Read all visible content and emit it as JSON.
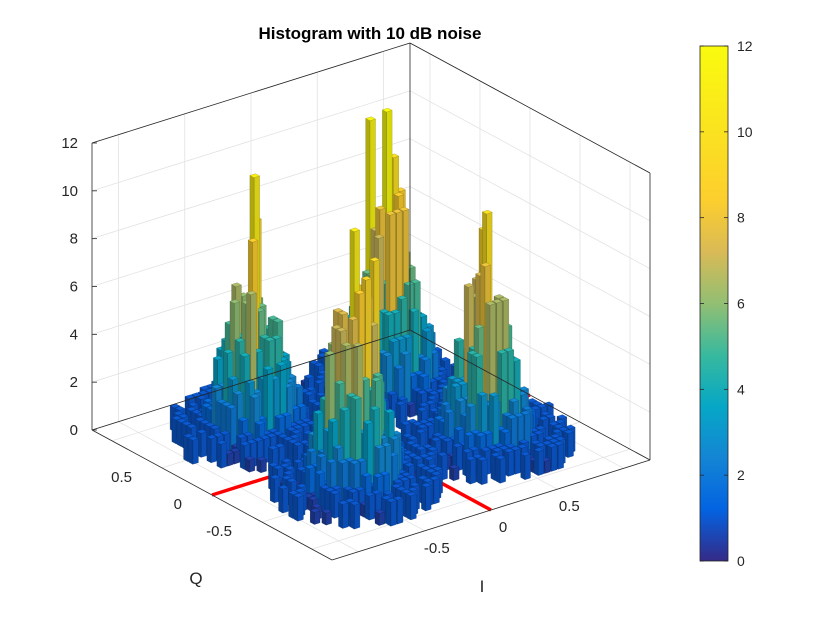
{
  "chart_data": {
    "type": "3d-bar-histogram",
    "title": "Histogram with 10 dB noise",
    "xlabel": "I",
    "ylabel": "Q",
    "zlabel": "",
    "xlim": [
      -1.2,
      1.2
    ],
    "ylim": [
      -1.2,
      1.2
    ],
    "zlim": [
      0,
      12
    ],
    "x_ticks": [
      "-0.5",
      "0",
      "0.5"
    ],
    "y_ticks": [
      "-0.5",
      "0",
      "0.5"
    ],
    "z_ticks": [
      "0",
      "2",
      "4",
      "6",
      "8",
      "10",
      "12"
    ],
    "grid": true,
    "colormap": "parula",
    "colorbar": {
      "range": [
        0,
        12
      ],
      "ticks": [
        "0",
        "2",
        "4",
        "6",
        "8",
        "10",
        "12"
      ]
    },
    "reference_lines": {
      "color": "#ff0000",
      "lines": [
        "I = 0",
        "Q = 0"
      ]
    },
    "clusters": [
      {
        "I": -0.5,
        "Q": 0.5,
        "peak": 11
      },
      {
        "I": 0.5,
        "Q": 0.5,
        "peak": 12
      },
      {
        "I": -0.5,
        "Q": -0.5,
        "peak": 11
      },
      {
        "I": 0.5,
        "Q": -0.5,
        "peak": 10
      }
    ],
    "bin_width": 0.05,
    "cluster_spread": 0.2
  }
}
